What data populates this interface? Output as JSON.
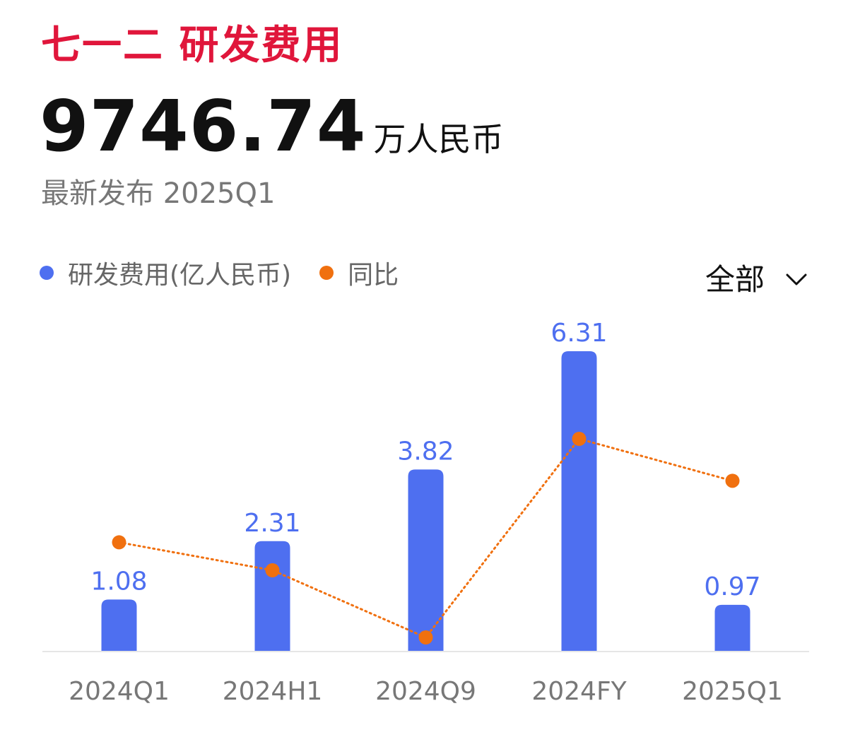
{
  "header": {
    "title": "七一二 研发费用",
    "latest_value": "9746.74",
    "latest_unit": "万人民币",
    "release_label": "最新发布 2025Q1"
  },
  "filter": {
    "label": "全部",
    "icon": "chevron-down-icon"
  },
  "colors": {
    "title": "#e0163b",
    "bar": "#4e6ff0",
    "line": "#f0700f",
    "label": "#4e6ff0",
    "axis_text": "#777777"
  },
  "chart_data": {
    "type": "bar",
    "categories": [
      "2024Q1",
      "2024H1",
      "2024Q9",
      "2024FY",
      "2025Q1"
    ],
    "series": [
      {
        "name": "研发费用(亿人民币)",
        "type": "bar",
        "values": [
          1.08,
          2.31,
          3.82,
          6.31,
          0.97
        ],
        "labels": [
          "1.08",
          "2.31",
          "3.82",
          "6.31",
          "0.97"
        ]
      },
      {
        "name": "同比",
        "type": "line",
        "style": "dotted",
        "values": [
          0.31,
          0.21,
          -0.03,
          0.68,
          0.53
        ]
      }
    ],
    "legend_position": "top-left",
    "y_axis_visible": false,
    "grid": false
  }
}
